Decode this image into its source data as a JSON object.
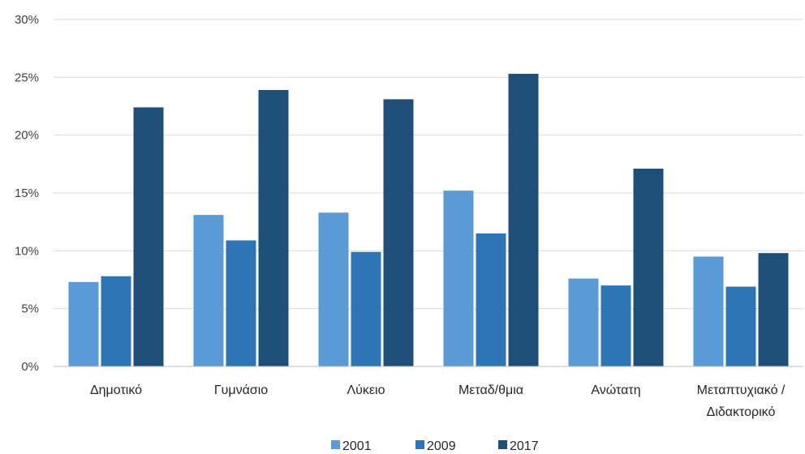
{
  "chart_data": {
    "type": "bar",
    "categories": [
      [
        "Δημοτικό"
      ],
      [
        "Γυμνάσιο"
      ],
      [
        "Λύκειο"
      ],
      [
        "Μεταδ/θμια"
      ],
      [
        "Ανώτατη"
      ],
      [
        "Μεταπτυχιακό /",
        "Διδακτορικό"
      ]
    ],
    "series": [
      {
        "name": "2001",
        "color": "#5b9bd5",
        "values": [
          7.3,
          13.1,
          13.3,
          15.2,
          7.6,
          9.5
        ]
      },
      {
        "name": "2009",
        "color": "#2e75b6",
        "values": [
          7.8,
          10.9,
          9.9,
          11.5,
          7.0,
          6.9
        ]
      },
      {
        "name": "2017",
        "color": "#1f4e79",
        "values": [
          22.4,
          23.9,
          23.1,
          25.3,
          17.1,
          9.8
        ]
      }
    ],
    "ylim": [
      0,
      30
    ],
    "yticks": [
      0,
      5,
      10,
      15,
      20,
      25,
      30
    ],
    "ytick_suffix": "%",
    "grid": true,
    "legend_position": "bottom"
  }
}
